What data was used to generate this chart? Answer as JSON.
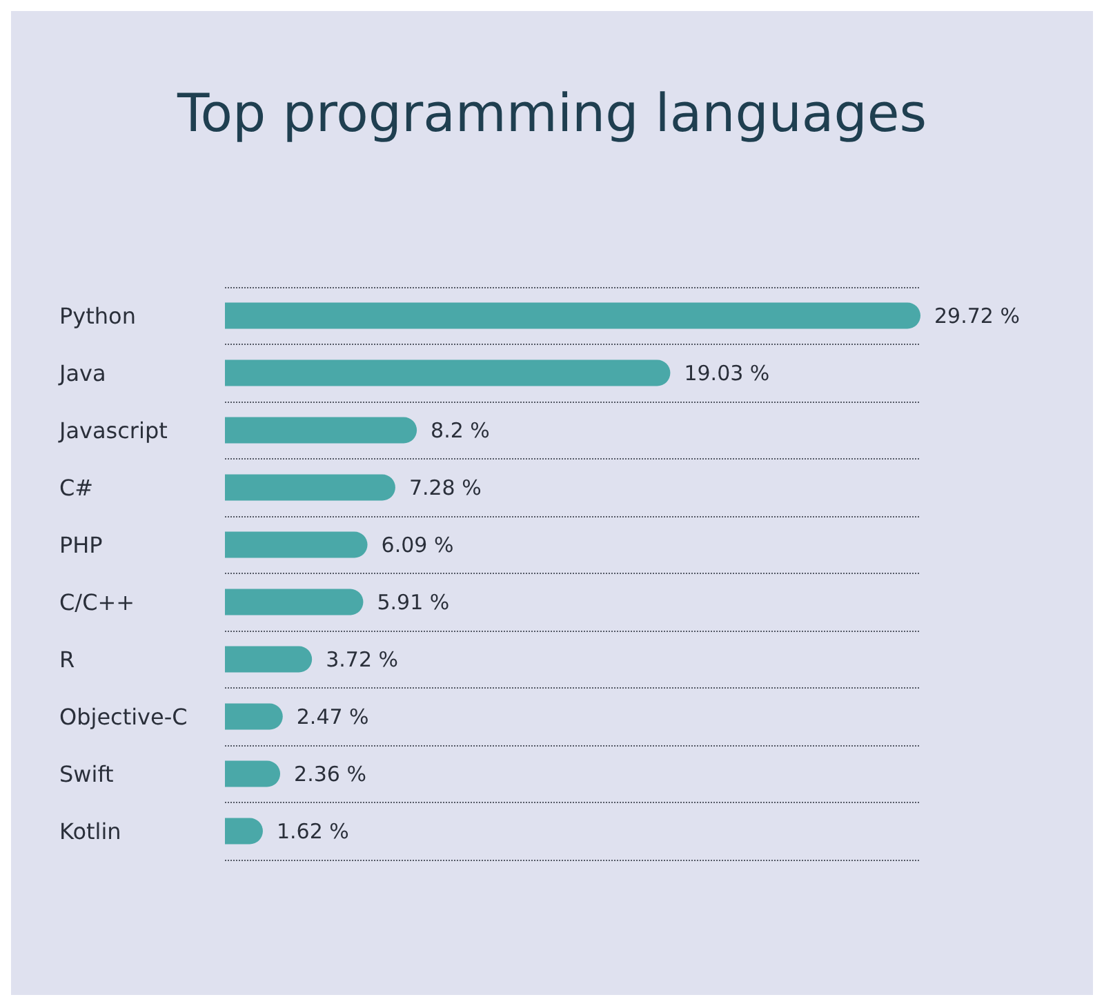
{
  "chart_data": {
    "type": "bar",
    "orientation": "horizontal",
    "title": "Top programming languages",
    "categories": [
      "Python",
      "Java",
      "Javascript",
      "C#",
      "PHP",
      "C/C++",
      "R",
      "Objective-C",
      "Swift",
      "Kotlin"
    ],
    "values": [
      29.72,
      19.03,
      8.2,
      7.28,
      6.09,
      5.91,
      3.72,
      2.47,
      2.36,
      1.62
    ],
    "value_labels": [
      "29.72 %",
      "19.03 %",
      "8.2 %",
      "7.28 %",
      "6.09 %",
      "5.91 %",
      "3.72 %",
      "2.47 %",
      "2.36 %",
      "1.62 %"
    ],
    "color": "#4aa8a8",
    "grid": "y",
    "tick_labels": "y"
  }
}
